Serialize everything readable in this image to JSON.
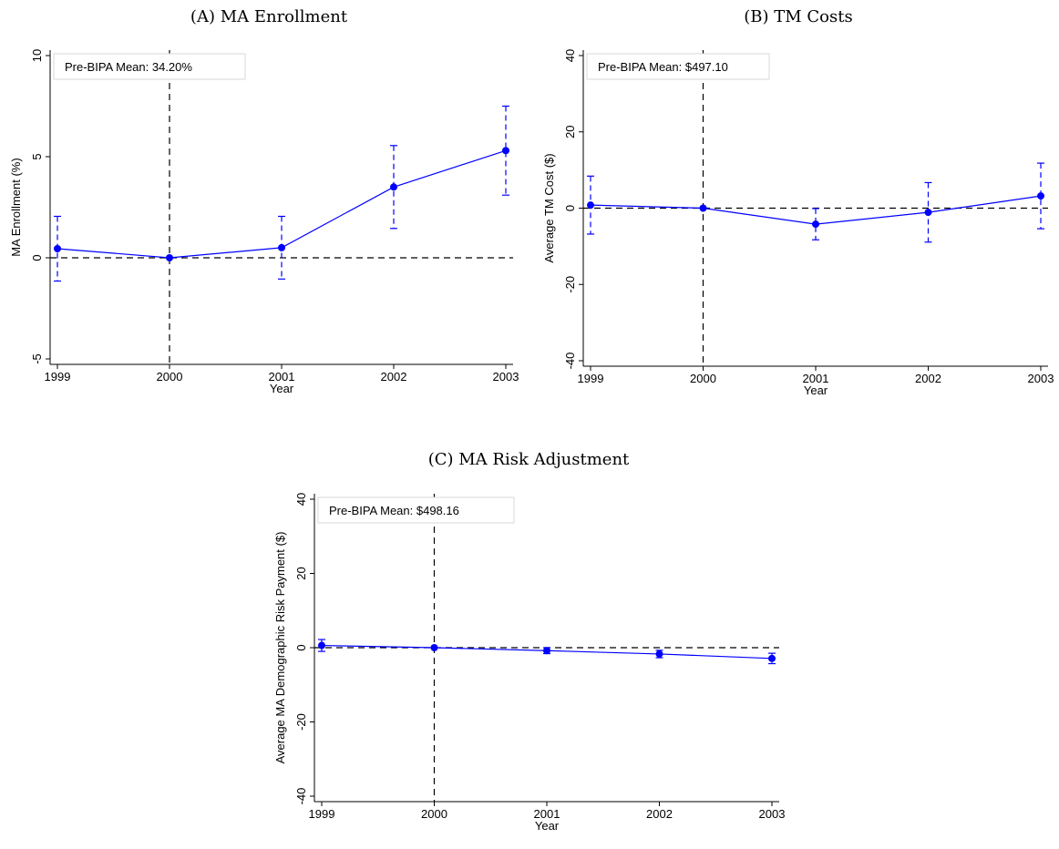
{
  "panels": [
    {
      "title": "(A) MA Enrollment"
    },
    {
      "title": "(B) TM Costs"
    },
    {
      "title": "(C) MA Risk Adjustment"
    }
  ],
  "chart_data": [
    {
      "type": "line",
      "title": "(A) MA Enrollment",
      "xlabel": "Year",
      "ylabel": "MA Enrollment (%)",
      "x": [
        1999,
        2000,
        2001,
        2002,
        2003
      ],
      "x_ticks": [
        "1999",
        "2000",
        "2001",
        "2002",
        "2003"
      ],
      "y_ticks": [
        "-5",
        "0",
        "5",
        "10"
      ],
      "ylim": [
        -5,
        10
      ],
      "series": [
        {
          "values": [
            0.45,
            0.0,
            0.5,
            3.5,
            5.3
          ],
          "ci_low": [
            -1.15,
            0.0,
            -1.05,
            1.45,
            3.1
          ],
          "ci_high": [
            2.05,
            0.0,
            2.05,
            5.55,
            7.5
          ]
        }
      ],
      "reference_x": 2000,
      "reference_y": 0,
      "annotation": "Pre-BIPA Mean: 34.20%",
      "color": "#0000ff"
    },
    {
      "type": "line",
      "title": "(B) TM Costs",
      "xlabel": "Year",
      "ylabel": "Average TM Cost ($)",
      "x": [
        1999,
        2000,
        2001,
        2002,
        2003
      ],
      "x_ticks": [
        "1999",
        "2000",
        "2001",
        "2002",
        "2003"
      ],
      "y_ticks": [
        "-40",
        "-20",
        "0",
        "20",
        "40"
      ],
      "ylim": [
        -40,
        40
      ],
      "series": [
        {
          "values": [
            0.8,
            0.0,
            -4.2,
            -1.1,
            3.2
          ],
          "ci_low": [
            -6.8,
            0.0,
            -8.3,
            -8.9,
            -5.4
          ],
          "ci_high": [
            8.4,
            0.0,
            -0.1,
            6.7,
            11.8
          ]
        }
      ],
      "reference_x": 2000,
      "reference_y": 0,
      "annotation": "Pre-BIPA Mean: $497.10",
      "color": "#0000ff"
    },
    {
      "type": "line",
      "title": "(C) MA Risk Adjustment",
      "xlabel": "Year",
      "ylabel": "Average MA Demographic Risk Payment ($)",
      "x": [
        1999,
        2000,
        2001,
        2002,
        2003
      ],
      "x_ticks": [
        "1999",
        "2000",
        "2001",
        "2002",
        "2003"
      ],
      "y_ticks": [
        "-40",
        "-20",
        "0",
        "20",
        "40"
      ],
      "ylim": [
        -40,
        40
      ],
      "series": [
        {
          "values": [
            0.6,
            0.0,
            -0.8,
            -1.7,
            -2.9
          ],
          "ci_low": [
            -1.0,
            0.0,
            -1.6,
            -2.7,
            -4.3
          ],
          "ci_high": [
            2.2,
            0.0,
            0.0,
            -0.7,
            -1.5
          ]
        }
      ],
      "reference_x": 2000,
      "reference_y": 0,
      "annotation": "Pre-BIPA Mean: $498.16",
      "color": "#0000ff"
    }
  ]
}
